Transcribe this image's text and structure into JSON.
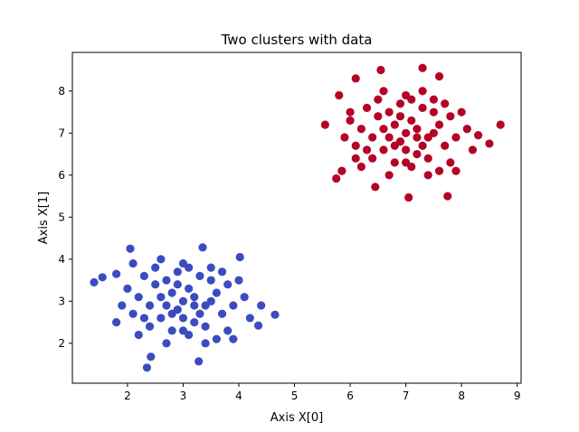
{
  "chart_data": {
    "type": "scatter",
    "title": "Two clusters with data",
    "xlabel": "Axis X[0]",
    "ylabel": "Axis X[1]",
    "xlim": [
      1.01,
      9.07
    ],
    "ylim": [
      1.05,
      8.92
    ],
    "xticks": [
      2,
      3,
      4,
      5,
      6,
      7,
      8,
      9
    ],
    "yticks": [
      2,
      3,
      4,
      5,
      6,
      7,
      8
    ],
    "series": [
      {
        "color": "#3b4cc0",
        "x": [
          1.4,
          1.55,
          1.8,
          2.35,
          2.42,
          3.28,
          4.65,
          2.05,
          3.35,
          4.02,
          4.35,
          2.6,
          2.9,
          3.1,
          3.4,
          2.7,
          3.2,
          2.8,
          3.6,
          2.4,
          3.0,
          3.3,
          2.5,
          3.7,
          2.2,
          3.5,
          2.9,
          3.1,
          2.6,
          3.8,
          2.3,
          3.0,
          3.9,
          2.1,
          3.4,
          2.7,
          3.2,
          2.8,
          3.6,
          2.0,
          4.1,
          2.5,
          3.3,
          3.0,
          2.4,
          3.8,
          2.9,
          3.5,
          4.2,
          1.9,
          3.1,
          2.6,
          3.7,
          4.0,
          2.3,
          1.8,
          3.4,
          2.8,
          3.2,
          2.7,
          3.5,
          4.4,
          2.1,
          3.0,
          3.9,
          2.2
        ],
        "y": [
          3.45,
          3.57,
          3.65,
          1.42,
          1.68,
          1.57,
          2.68,
          4.25,
          4.28,
          4.05,
          2.42,
          3.1,
          2.8,
          3.3,
          2.9,
          3.5,
          2.5,
          2.3,
          3.2,
          2.9,
          3.0,
          3.6,
          3.4,
          2.7,
          3.1,
          3.8,
          3.7,
          2.2,
          2.6,
          3.4,
          2.6,
          3.9,
          2.9,
          2.7,
          2.4,
          2.0,
          3.1,
          3.2,
          2.1,
          3.3,
          3.1,
          3.8,
          2.7,
          2.6,
          2.4,
          2.3,
          3.4,
          3.5,
          2.6,
          2.9,
          3.8,
          4.0,
          3.7,
          3.5,
          3.6,
          2.5,
          2.0,
          2.7,
          2.9,
          2.9,
          3.0,
          2.9,
          3.9,
          2.3,
          2.1,
          2.2
        ]
      },
      {
        "color": "#b40426",
        "x": [
          5.55,
          5.75,
          5.85,
          6.1,
          6.55,
          7.05,
          7.3,
          7.75,
          8.7,
          8.5,
          8.3,
          7.6,
          6.45,
          5.8,
          6.6,
          6.9,
          7.1,
          7.4,
          6.7,
          7.2,
          6.8,
          7.6,
          6.4,
          7.0,
          7.3,
          6.5,
          7.7,
          6.2,
          7.5,
          6.9,
          7.1,
          6.6,
          7.8,
          6.3,
          7.0,
          7.9,
          6.1,
          7.4,
          6.7,
          7.2,
          6.8,
          7.6,
          6.0,
          8.1,
          6.5,
          7.3,
          7.0,
          6.4,
          7.8,
          6.9,
          7.5,
          8.2,
          5.9,
          7.1,
          6.6,
          7.7,
          8.0,
          6.3,
          6.1,
          7.4,
          6.8,
          7.2,
          6.7,
          7.5,
          6.0,
          7.0,
          7.9,
          6.2,
          7.3
        ],
        "y": [
          7.2,
          5.92,
          6.1,
          8.3,
          8.5,
          5.47,
          8.55,
          5.5,
          7.2,
          6.75,
          6.95,
          8.35,
          5.72,
          7.9,
          7.1,
          6.8,
          7.3,
          6.9,
          7.5,
          6.5,
          6.3,
          7.2,
          6.9,
          7.0,
          7.6,
          7.4,
          6.7,
          7.1,
          7.8,
          7.7,
          6.2,
          6.6,
          7.4,
          6.6,
          7.9,
          6.9,
          6.7,
          6.4,
          6.0,
          7.1,
          7.2,
          6.1,
          7.3,
          7.1,
          7.8,
          6.7,
          6.6,
          6.4,
          6.3,
          7.4,
          7.5,
          6.6,
          6.9,
          7.8,
          8.0,
          7.7,
          7.5,
          7.6,
          6.4,
          6.0,
          6.7,
          6.9,
          6.9,
          7.0,
          7.5,
          6.3,
          6.1,
          6.2,
          8.0
        ]
      }
    ]
  }
}
